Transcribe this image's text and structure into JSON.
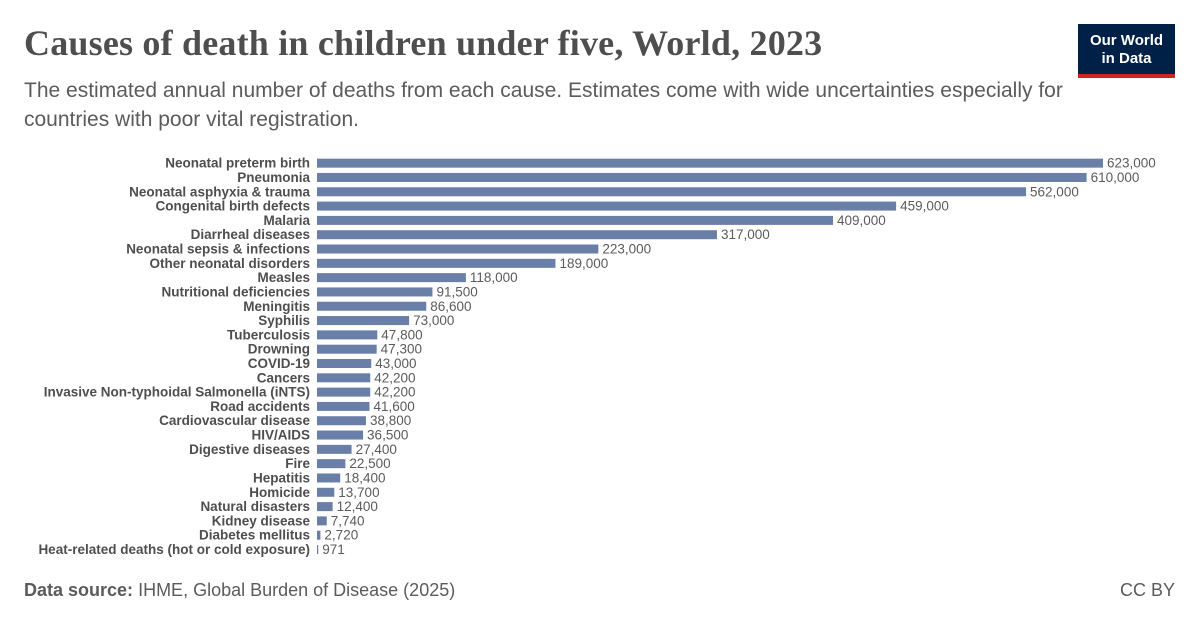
{
  "header": {
    "title": "Causes of death in children under five, World, 2023",
    "subtitle": "The estimated annual number of deaths from each cause. Estimates come with wide uncertainties especially for countries with poor vital registration."
  },
  "logo": {
    "line1": "Our World",
    "line2": "in Data"
  },
  "footer": {
    "source_label": "Data source:",
    "source_text": "IHME, Global Burden of Disease (2025)",
    "license": "CC BY"
  },
  "colors": {
    "bar": "#6a7fa8",
    "label": "#4e4e4e",
    "value": "#5b5b5b",
    "logo_bg": "#002147",
    "logo_accent": "#ce261e"
  },
  "chart_data": {
    "type": "bar",
    "orientation": "horizontal",
    "categories": [
      "Neonatal preterm birth",
      "Pneumonia",
      "Neonatal asphyxia & trauma",
      "Congenital birth defects",
      "Malaria",
      "Diarrheal diseases",
      "Neonatal sepsis & infections",
      "Other neonatal disorders",
      "Measles",
      "Nutritional deficiencies",
      "Meningitis",
      "Syphilis",
      "Tuberculosis",
      "Drowning",
      "COVID-19",
      "Cancers",
      "Invasive Non-typhoidal Salmonella (iNTS)",
      "Road accidents",
      "Cardiovascular disease",
      "HIV/AIDS",
      "Digestive diseases",
      "Fire",
      "Hepatitis",
      "Homicide",
      "Natural disasters",
      "Kidney disease",
      "Diabetes mellitus",
      "Heat-related deaths (hot or cold exposure)"
    ],
    "values": [
      623000,
      610000,
      562000,
      459000,
      409000,
      317000,
      223000,
      189000,
      118000,
      91500,
      86600,
      73000,
      47800,
      47300,
      43000,
      42200,
      42200,
      41600,
      38800,
      36500,
      27400,
      22500,
      18400,
      13700,
      12400,
      7740,
      2720,
      971
    ],
    "value_labels": [
      "623,000",
      "610,000",
      "562,000",
      "459,000",
      "409,000",
      "317,000",
      "223,000",
      "189,000",
      "118,000",
      "91,500",
      "86,600",
      "73,000",
      "47,800",
      "47,300",
      "43,000",
      "42,200",
      "42,200",
      "41,600",
      "38,800",
      "36,500",
      "27,400",
      "22,500",
      "18,400",
      "13,700",
      "12,400",
      "7,740",
      "2,720",
      "971"
    ],
    "xlim": [
      0,
      623000
    ],
    "grid": false,
    "legend": "none"
  }
}
